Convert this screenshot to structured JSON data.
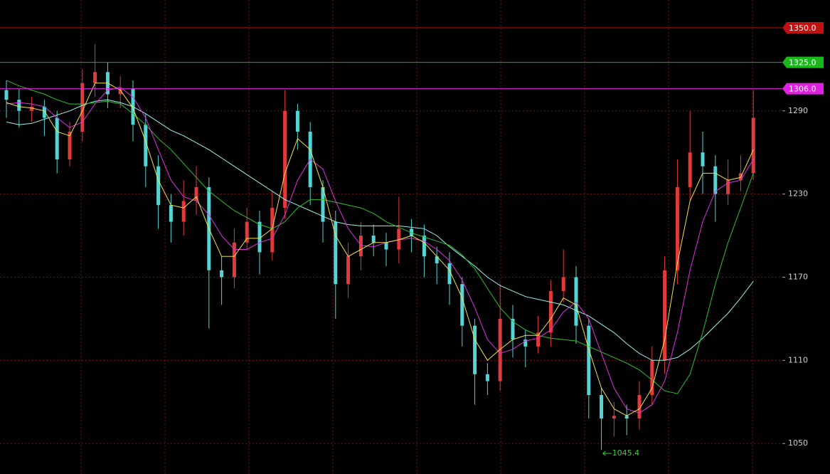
{
  "chart_data": {
    "type": "candlestick",
    "ylim": [
      1028,
      1370
    ],
    "yticks": [
      1050,
      1110,
      1170,
      1230,
      1290
    ],
    "grid": true,
    "candles": {
      "up_color": "#e03a3a",
      "down_color": "#54d4d4",
      "open": [
        1305,
        1298,
        1290,
        1293,
        1285,
        1255,
        1275,
        1310,
        1318,
        1302,
        1306,
        1280,
        1250,
        1222,
        1210,
        1225,
        1235,
        1175,
        1170,
        1195,
        1210,
        1188,
        1220,
        1290,
        1275,
        1235,
        1210,
        1165,
        1185,
        1200,
        1195,
        1190,
        1205,
        1200,
        1185,
        1180,
        1165,
        1135,
        1100,
        1095,
        1140,
        1125,
        1120,
        1130,
        1160,
        1170,
        1135,
        1085,
        1068,
        1070,
        1068,
        1085,
        1110,
        1175,
        1235,
        1260,
        1250,
        1230,
        1240,
        1245
      ],
      "high": [
        1312,
        1306,
        1300,
        1298,
        1290,
        1282,
        1320,
        1338,
        1325,
        1315,
        1312,
        1288,
        1258,
        1230,
        1240,
        1250,
        1242,
        1185,
        1205,
        1220,
        1218,
        1232,
        1305,
        1295,
        1282,
        1240,
        1218,
        1195,
        1210,
        1208,
        1202,
        1228,
        1212,
        1208,
        1192,
        1188,
        1170,
        1140,
        1108,
        1165,
        1150,
        1132,
        1142,
        1168,
        1190,
        1178,
        1140,
        1090,
        1080,
        1078,
        1095,
        1120,
        1185,
        1255,
        1290,
        1275,
        1258,
        1255,
        1258,
        1305
      ],
      "low": [
        1285,
        1278,
        1282,
        1272,
        1245,
        1250,
        1268,
        1300,
        1292,
        1292,
        1268,
        1235,
        1205,
        1195,
        1200,
        1215,
        1133,
        1150,
        1162,
        1190,
        1172,
        1182,
        1212,
        1262,
        1222,
        1195,
        1140,
        1155,
        1175,
        1185,
        1178,
        1180,
        1188,
        1170,
        1165,
        1150,
        1120,
        1078,
        1085,
        1088,
        1112,
        1105,
        1115,
        1120,
        1152,
        1122,
        1068,
        1045.4,
        1055,
        1056,
        1060,
        1078,
        1100,
        1165,
        1225,
        1230,
        1210,
        1222,
        1232,
        1240
      ],
      "close": [
        1298,
        1290,
        1293,
        1285,
        1255,
        1275,
        1310,
        1318,
        1302,
        1306,
        1280,
        1250,
        1222,
        1210,
        1225,
        1235,
        1175,
        1170,
        1195,
        1210,
        1188,
        1220,
        1290,
        1275,
        1235,
        1210,
        1165,
        1185,
        1200,
        1195,
        1190,
        1205,
        1200,
        1185,
        1180,
        1165,
        1135,
        1100,
        1095,
        1140,
        1125,
        1120,
        1130,
        1160,
        1170,
        1135,
        1085,
        1068,
        1070,
        1068,
        1085,
        1110,
        1175,
        1235,
        1260,
        1250,
        1230,
        1240,
        1245,
        1285
      ]
    },
    "lines": [
      {
        "color": "#9ef0f0",
        "values": [
          1282,
          1280,
          1281,
          1284,
          1287,
          1290,
          1294,
          1297,
          1298,
          1296,
          1293,
          1288,
          1282,
          1276,
          1272,
          1267,
          1262,
          1256,
          1250,
          1244,
          1238,
          1232,
          1226,
          1222,
          1218,
          1214,
          1210,
          1208,
          1207,
          1207,
          1207,
          1207,
          1206,
          1205,
          1200,
          1192,
          1185,
          1178,
          1170,
          1164,
          1160,
          1156,
          1154,
          1152,
          1150,
          1146,
          1142,
          1136,
          1130,
          1122,
          1115,
          1110,
          1110,
          1112,
          1118,
          1126,
          1135,
          1144,
          1155,
          1167
        ]
      },
      {
        "color": "#2fc02f",
        "values": [
          1312,
          1308,
          1305,
          1302,
          1298,
          1295,
          1295,
          1296,
          1297,
          1295,
          1288,
          1280,
          1270,
          1262,
          1252,
          1242,
          1232,
          1225,
          1218,
          1213,
          1208,
          1205,
          1210,
          1220,
          1226,
          1226,
          1224,
          1222,
          1220,
          1216,
          1210,
          1206,
          1202,
          1199,
          1196,
          1193,
          1186,
          1176,
          1162,
          1148,
          1138,
          1132,
          1128,
          1126,
          1125,
          1124,
          1120,
          1116,
          1112,
          1108,
          1103,
          1096,
          1088,
          1086,
          1100,
          1130,
          1165,
          1195,
          1220,
          1245
        ]
      },
      {
        "color": "#e030e0",
        "values": [
          1295,
          1296,
          1295,
          1293,
          1285,
          1278,
          1282,
          1295,
          1305,
          1307,
          1300,
          1285,
          1262,
          1240,
          1228,
          1225,
          1215,
          1200,
          1190,
          1190,
          1195,
          1198,
          1215,
          1240,
          1255,
          1248,
          1225,
          1205,
          1193,
          1192,
          1195,
          1197,
          1198,
          1196,
          1190,
          1182,
          1168,
          1148,
          1125,
          1115,
          1118,
          1124,
          1126,
          1132,
          1145,
          1152,
          1140,
          1115,
          1090,
          1075,
          1072,
          1078,
          1095,
          1130,
          1175,
          1210,
          1232,
          1238,
          1240,
          1255
        ]
      },
      {
        "color": "#f2e04a",
        "values": [
          1296,
          1293,
          1292,
          1290,
          1275,
          1272,
          1290,
          1310,
          1310,
          1305,
          1292,
          1268,
          1240,
          1222,
          1220,
          1228,
          1205,
          1185,
          1185,
          1198,
          1198,
          1205,
          1245,
          1270,
          1262,
          1235,
          1200,
          1185,
          1190,
          1195,
          1195,
          1197,
          1200,
          1195,
          1185,
          1175,
          1155,
          1125,
          1110,
          1118,
          1125,
          1128,
          1128,
          1140,
          1155,
          1150,
          1118,
          1090,
          1075,
          1070,
          1075,
          1090,
          1125,
          1180,
          1225,
          1245,
          1245,
          1240,
          1242,
          1262
        ]
      }
    ],
    "levels": [
      {
        "value": 1350,
        "label": "1350.0",
        "color": "#c01010"
      },
      {
        "value": 1325,
        "label": "1325.0",
        "color": "#18b818"
      },
      {
        "value": 1306,
        "label": "1306.0",
        "color": "#e020e0"
      }
    ],
    "min_label": 1045.4,
    "min_color": "#3ad23a"
  }
}
